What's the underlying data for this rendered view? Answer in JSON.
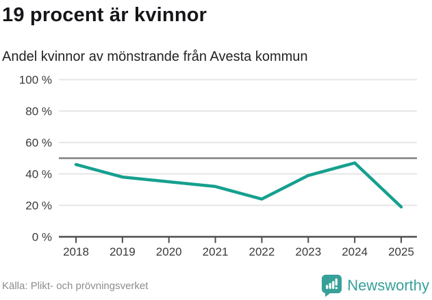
{
  "header": {
    "title": "19 procent är kvinnor",
    "subtitle": "Andel kvinnor av mönstrande från Avesta kommun"
  },
  "chart_data": {
    "type": "line",
    "title": "19 procent är kvinnor",
    "subtitle": "Andel kvinnor av mönstrande från Avesta kommun",
    "categories": [
      "2018",
      "2019",
      "2020",
      "2021",
      "2022",
      "2023",
      "2024",
      "2025"
    ],
    "series": [
      {
        "name": "Andel kvinnor av mönstrande",
        "values": [
          46,
          38,
          35,
          32,
          24,
          39,
          47,
          19
        ]
      }
    ],
    "xlabel": "",
    "ylabel": "",
    "ylim": [
      0,
      100
    ],
    "yticks": [
      0,
      20,
      40,
      60,
      80,
      100
    ],
    "ytick_suffix": " %",
    "reference_line": 50,
    "grid": true,
    "legend": "none",
    "colors": {
      "line": "#16a08e",
      "grid": "#e4e4e4",
      "reference": "#7f7f7f",
      "axis": "#4d4d4d",
      "tick_labels": "#3a3a3a"
    }
  },
  "footer": {
    "source": "Källa: Plikt- och prövningsverket",
    "brand": "Newsworthy",
    "brand_color": "#37a099",
    "logo_icon": "speech-bubble-bar-chart-icon"
  }
}
